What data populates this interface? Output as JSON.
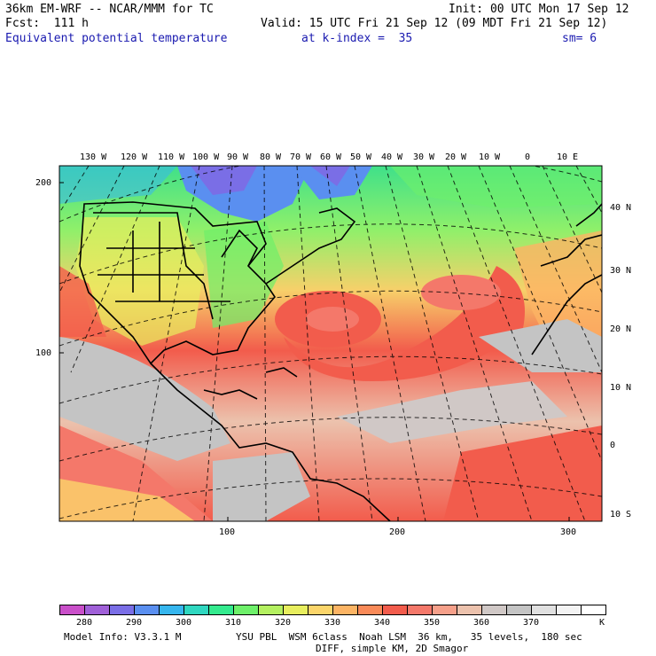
{
  "header": {
    "model": "36km EM-WRF -- NCAR/MMM for TC",
    "init": "Init: 00 UTC Mon 17 Sep 12",
    "fcst": "Fcst:  111 h",
    "valid": "Valid: 15 UTC Fri 21 Sep 12 (09 MDT Fri 21 Sep 12)",
    "field": "Equivalent potential temperature",
    "level": "at k-index =  35",
    "smooth": "sm= 6"
  },
  "map": {
    "lon_labels": [
      "130 W",
      "120 W",
      "110 W",
      "100 W",
      "90 W",
      "80 W",
      "70 W",
      "60 W",
      "50 W",
      "40 W",
      "30 W",
      "20 W",
      "10 W",
      "0",
      "10 E"
    ],
    "lat_labels": [
      "40 N",
      "30 N",
      "20 N",
      "10 N",
      "0",
      "10 S"
    ],
    "grid_y_labels": [
      "200",
      "100"
    ],
    "grid_x_labels": [
      "100",
      "200",
      "300"
    ]
  },
  "colorbar": {
    "colors": [
      "#c94fc9",
      "#a060d8",
      "#7a6ee6",
      "#5a8ff0",
      "#36b6ee",
      "#2fd7c0",
      "#34ea8e",
      "#6ef06a",
      "#b4f060",
      "#e8ee5e",
      "#fbd56a",
      "#fcb464",
      "#f98a58",
      "#f25c4c",
      "#f4786a",
      "#f6a08a",
      "#ecc2ad",
      "#d0c8c6",
      "#c4c4c4",
      "#e0e0e0",
      "#f3f3f3",
      "#ffffff"
    ],
    "labels": [
      "280",
      "290",
      "300",
      "310",
      "320",
      "330",
      "340",
      "350",
      "360",
      "370"
    ],
    "unit": "K"
  },
  "footer": {
    "model_info": "Model Info: V3.3.1 M",
    "physics": "YSU PBL  WSM 6class  Noah LSM  36 km,   35 levels,  180 sec",
    "diff": "DIFF, simple KM, 2D Smagor"
  }
}
